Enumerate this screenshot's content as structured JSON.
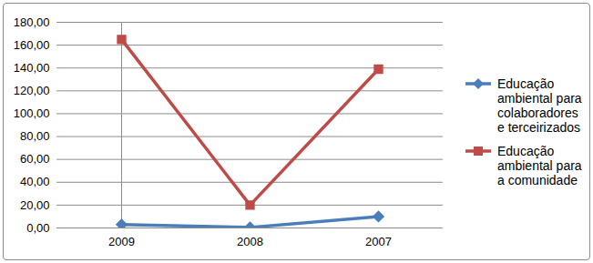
{
  "chart_data": {
    "type": "line",
    "categories": [
      "2009",
      "2008",
      "2007"
    ],
    "series": [
      {
        "name": "Educação ambiental para colaboradores e terceirizados",
        "color": "#4a7ebb",
        "marker": "diamond",
        "values": [
          3,
          0.5,
          10
        ]
      },
      {
        "name": "Educação ambiental para a comunidade",
        "color": "#be4b48",
        "marker": "square",
        "values": [
          165,
          20,
          139
        ]
      }
    ],
    "ylim": [
      0,
      180
    ],
    "yticks": [
      {
        "value": 0,
        "label": "0,00"
      },
      {
        "value": 20,
        "label": "20,00"
      },
      {
        "value": 40,
        "label": "40,00"
      },
      {
        "value": 60,
        "label": "60,00"
      },
      {
        "value": 80,
        "label": "80,00"
      },
      {
        "value": 100,
        "label": "100,00"
      },
      {
        "value": 120,
        "label": "120,00"
      },
      {
        "value": 140,
        "label": "140,00"
      },
      {
        "value": 160,
        "label": "160,00"
      },
      {
        "value": 180,
        "label": "180,00"
      }
    ],
    "grid": true,
    "legend": "right"
  }
}
